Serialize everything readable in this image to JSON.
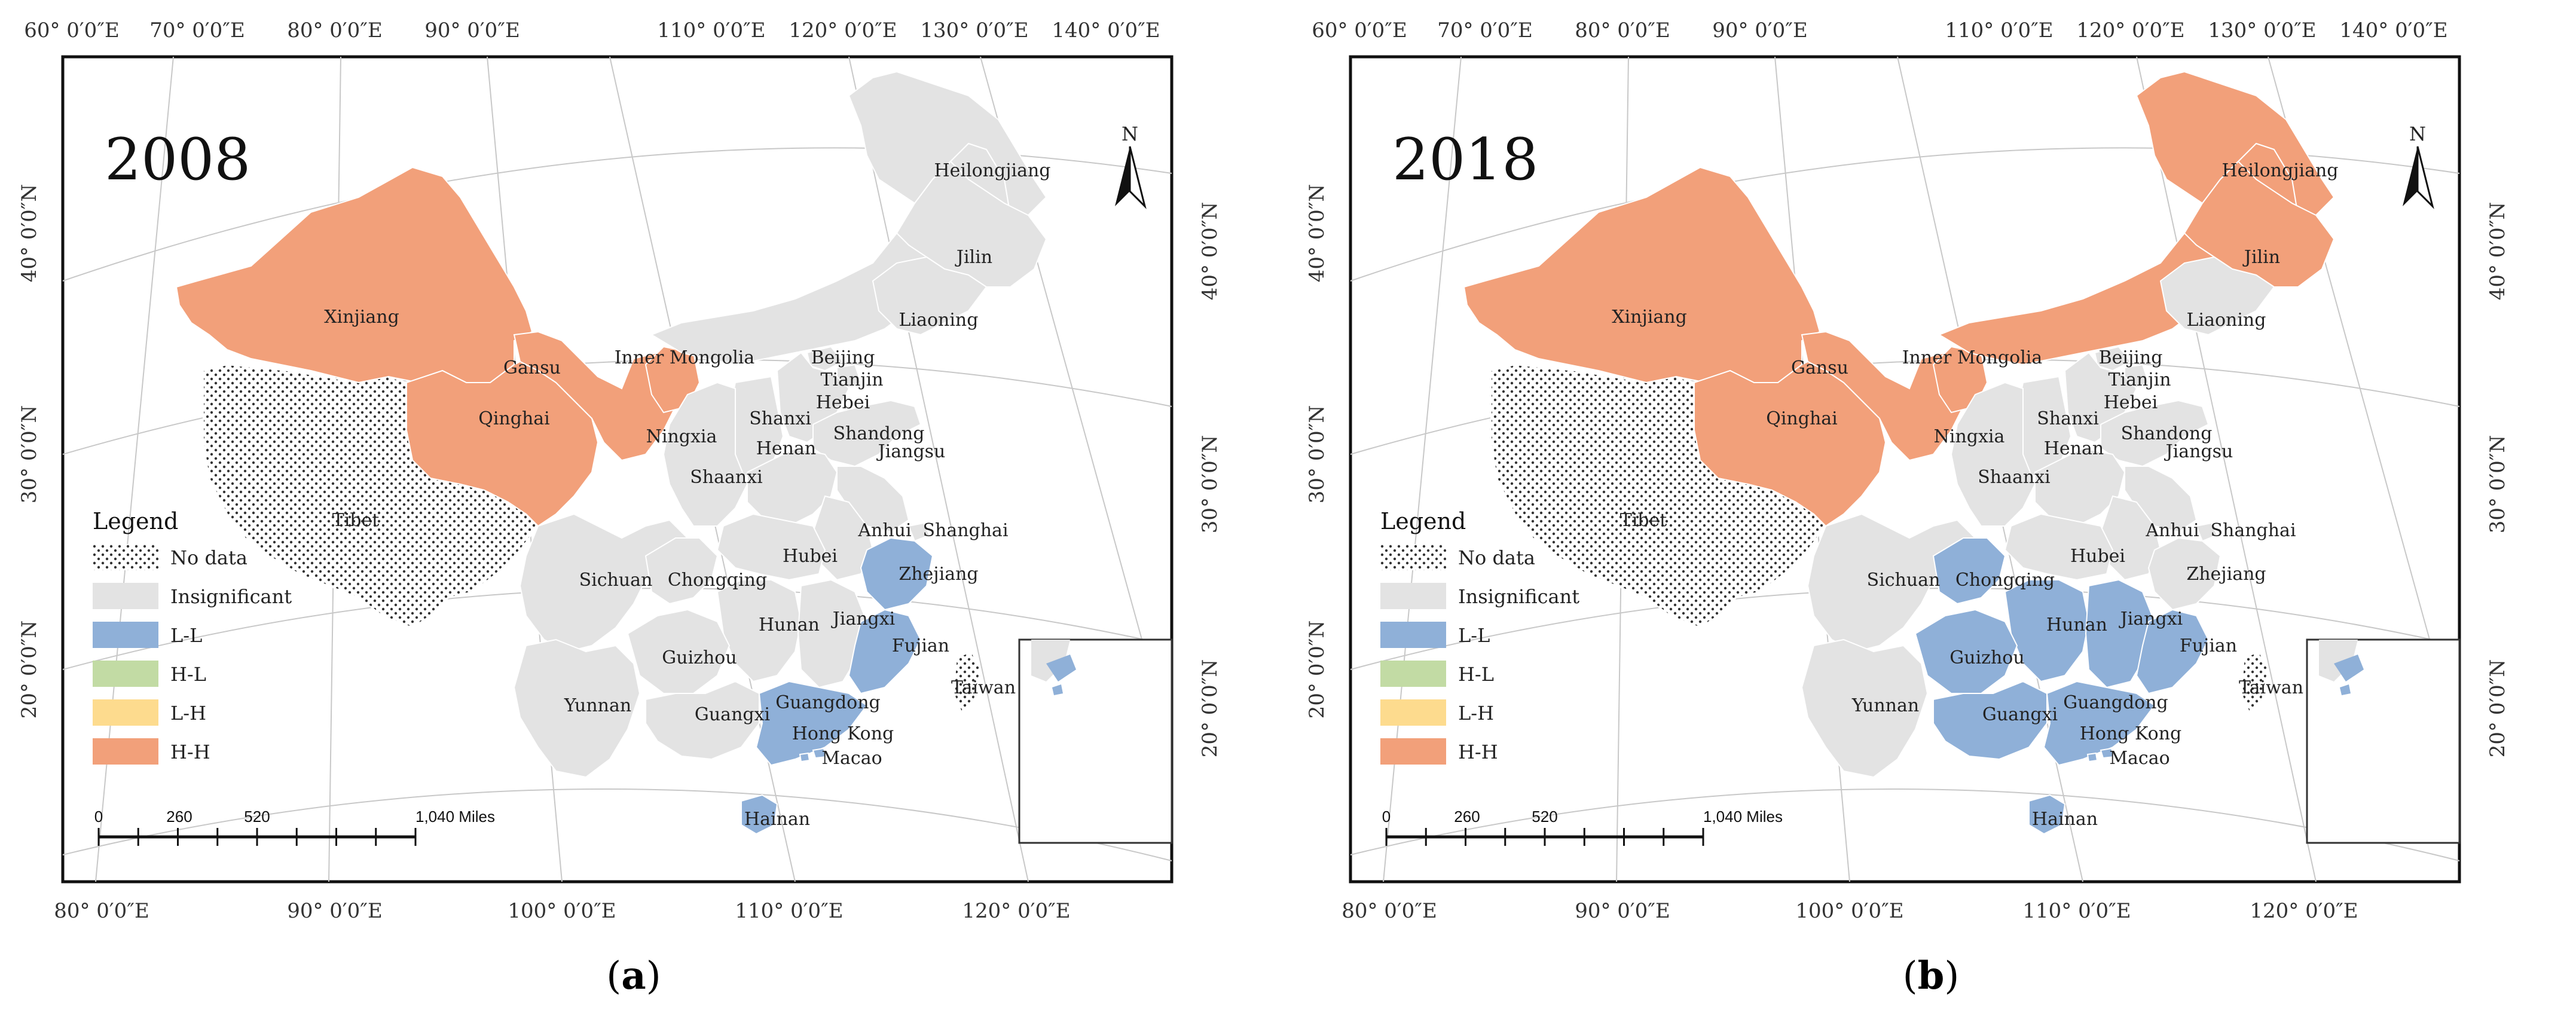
{
  "panels": [
    {
      "year": "2008",
      "caption_letter": "a",
      "top_lon": [
        "60° 0′0″E",
        "70° 0′0″E",
        "80° 0′0″E",
        "90° 0′0″E",
        "110° 0′0″E",
        "120° 0′0″E",
        "130° 0′0″E",
        "140° 0′0″E"
      ],
      "bottom_lon": [
        "80° 0′0″E",
        "90° 0′0″E",
        "100° 0′0″E",
        "110° 0′0″E",
        "120° 0′0″E"
      ],
      "left_lat": [
        "40° 0′0″N",
        "30° 0′0″N",
        "20° 0′0″N"
      ],
      "right_lat": [
        "40° 0′0″N",
        "30° 0′0″N",
        "20° 0′0″N"
      ],
      "legend": {
        "title": "Legend",
        "items": [
          "No data",
          "Insignificant",
          "L-L",
          "H-L",
          "L-H",
          "H-H"
        ]
      },
      "scale": {
        "ticks": [
          "0",
          "260",
          "520",
          "1,040 Miles"
        ]
      },
      "north": "N",
      "provinces": {
        "Xinjiang": "H-H",
        "Gansu": "H-H",
        "Qinghai": "H-H",
        "Ningxia": "H-H",
        "Tibet": "No data",
        "Taiwan": "No data",
        "Guangdong": "L-L",
        "Fujian": "L-L",
        "Zhejiang": "L-L",
        "Hainan": "L-L",
        "Hong Kong": "L-L",
        "Macao": "L-L",
        "Heilongjiang": "Insignificant",
        "Jilin": "Insignificant",
        "Liaoning": "Insignificant",
        "Inner Mongolia": "Insignificant",
        "Beijing": "Insignificant",
        "Tianjin": "Insignificant",
        "Hebei": "Insignificant",
        "Shanxi": "Insignificant",
        "Shandong": "Insignificant",
        "Shaanxi": "Insignificant",
        "Henan": "Insignificant",
        "Jiangsu": "Insignificant",
        "Anhui": "Insignificant",
        "Shanghai": "Insignificant",
        "Hubei": "Insignificant",
        "Sichuan": "Insignificant",
        "Chongqing": "Insignificant",
        "Hunan": "Insignificant",
        "Jiangxi": "Insignificant",
        "Guizhou": "Insignificant",
        "Yunnan": "Insignificant",
        "Guangxi": "Insignificant"
      }
    },
    {
      "year": "2018",
      "caption_letter": "b",
      "top_lon": [
        "60° 0′0″E",
        "70° 0′0″E",
        "80° 0′0″E",
        "90° 0′0″E",
        "110° 0′0″E",
        "120° 0′0″E",
        "130° 0′0″E",
        "140° 0′0″E"
      ],
      "bottom_lon": [
        "80° 0′0″E",
        "90° 0′0″E",
        "100° 0′0″E",
        "110° 0′0″E",
        "120° 0′0″E"
      ],
      "left_lat": [
        "40° 0′0″N",
        "30° 0′0″N",
        "20° 0′0″N"
      ],
      "right_lat": [
        "40° 0′0″N",
        "30° 0′0″N",
        "20° 0′0″N"
      ],
      "legend": {
        "title": "Legend",
        "items": [
          "No data",
          "Insignificant",
          "L-L",
          "H-L",
          "L-H",
          "H-H"
        ]
      },
      "scale": {
        "ticks": [
          "0",
          "260",
          "520",
          "1,040 Miles"
        ]
      },
      "north": "N",
      "provinces": {
        "Xinjiang": "H-H",
        "Gansu": "H-H",
        "Qinghai": "H-H",
        "Ningxia": "H-H",
        "Inner Mongolia": "H-H",
        "Heilongjiang": "H-H",
        "Jilin": "H-H",
        "Tibet": "No data",
        "Taiwan": "No data",
        "Guizhou": "L-L",
        "Guangxi": "L-L",
        "Guangdong": "L-L",
        "Fujian": "L-L",
        "Chongqing": "L-L",
        "Hunan": "L-L",
        "Jiangxi": "L-L",
        "Hainan": "L-L",
        "Hong Kong": "L-L",
        "Macao": "L-L",
        "Liaoning": "Insignificant",
        "Beijing": "Insignificant",
        "Tianjin": "Insignificant",
        "Hebei": "Insignificant",
        "Shanxi": "Insignificant",
        "Shandong": "Insignificant",
        "Shaanxi": "Insignificant",
        "Henan": "Insignificant",
        "Jiangsu": "Insignificant",
        "Anhui": "Insignificant",
        "Shanghai": "Insignificant",
        "Hubei": "Insignificant",
        "Zhejiang": "Insignificant",
        "Sichuan": "Insignificant",
        "Yunnan": "Insignificant"
      }
    }
  ],
  "colors": {
    "No data": "#ffffff",
    "Insignificant": "#e3e3e3",
    "L-L": "#8fb0d8",
    "H-L": "#c2dba4",
    "L-H": "#fddb8e",
    "H-H": "#f2a07a",
    "frame": "#111111",
    "grid": "#c8c8c8"
  }
}
